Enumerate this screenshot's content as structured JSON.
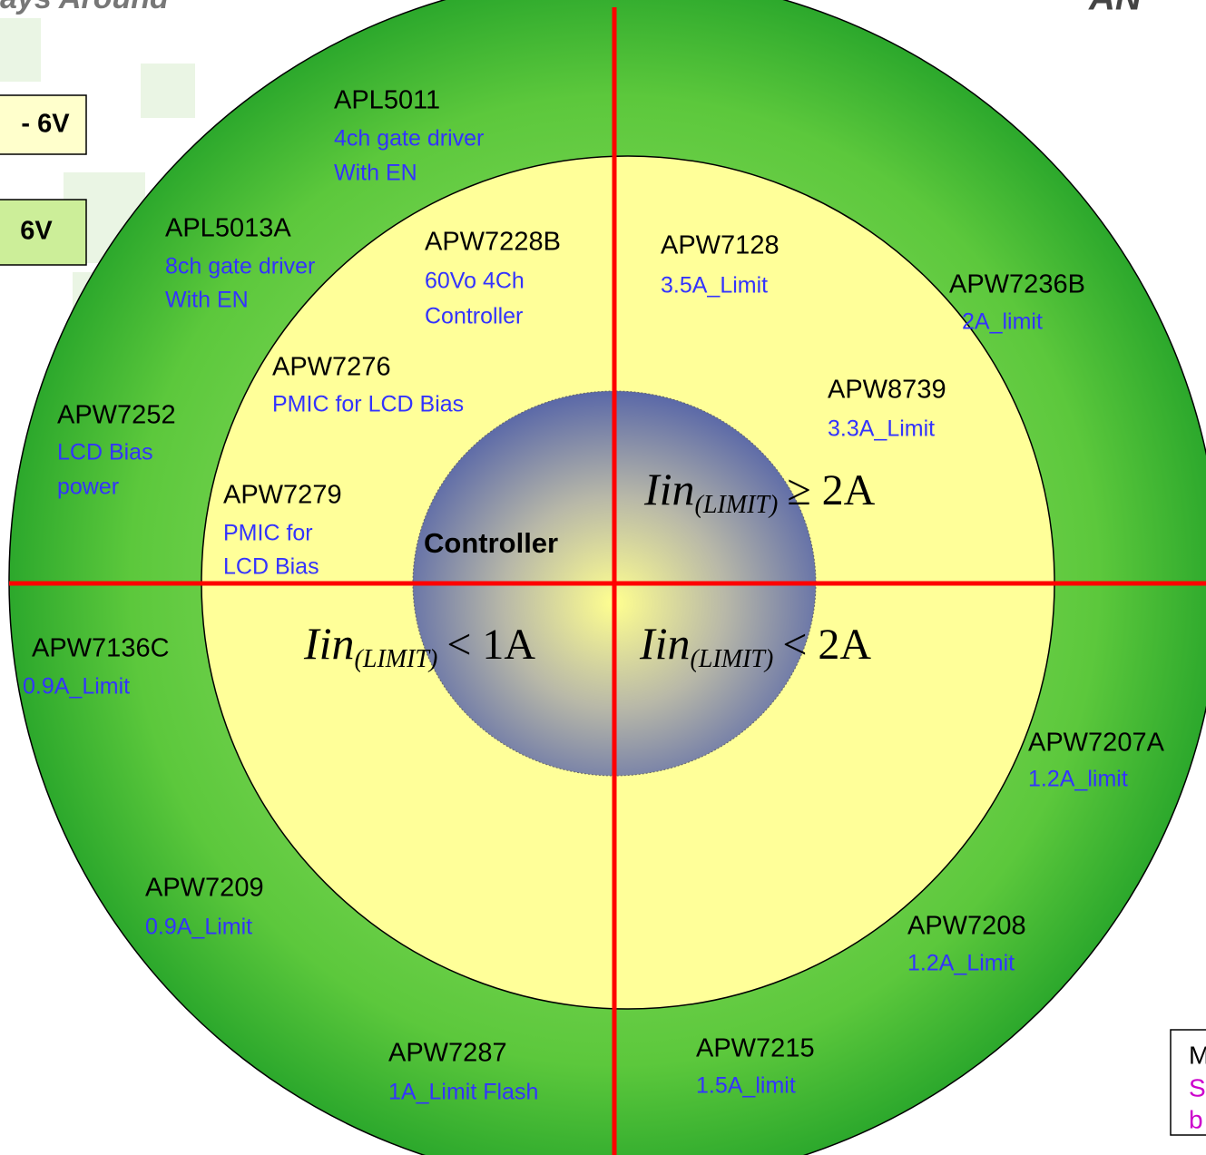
{
  "header": {
    "title_fragment": "ays Around",
    "logo_fragment": "AN"
  },
  "side_boxes": [
    "- 6V",
    "6V"
  ],
  "center": "Controller",
  "items": [
    {
      "name": "APL5011",
      "lines": [
        "4ch gate   driver",
        "With EN"
      ]
    },
    {
      "name": "APL5013A",
      "lines": [
        "8ch gate   driver",
        "With EN"
      ]
    },
    {
      "name": "APW7228B",
      "lines": [
        "60Vo 4Ch",
        "Controller"
      ]
    },
    {
      "name": "APW7128",
      "lines": [
        "3.5A_Limit"
      ]
    },
    {
      "name": "APW7236B",
      "lines": [
        "2A_limit"
      ]
    },
    {
      "name": "APW7276",
      "lines": [
        "PMIC for LCD Bias"
      ]
    },
    {
      "name": "APW8739",
      "name_color": "#cc00cc",
      "lines": [
        "3.3A_Limit"
      ]
    },
    {
      "name": "APW7252",
      "lines": [
        "LCD Bias",
        "power"
      ]
    },
    {
      "name": "APW7279",
      "lines": [
        "PMIC for",
        "LCD Bias"
      ]
    },
    {
      "name": "APW7136C",
      "lines": [
        "0.9A_Limit"
      ]
    },
    {
      "name": "APW7207A",
      "lines": [
        "1.2A_limit"
      ]
    },
    {
      "name": "APW7209",
      "lines": [
        "0.9A_Limit"
      ]
    },
    {
      "name": "APW7208",
      "lines": [
        "1.2A_Limit"
      ]
    },
    {
      "name": "APW7287",
      "name_color": "#cc00cc",
      "lines": [
        "1A_Limit Flash"
      ]
    },
    {
      "name": "APW7215",
      "lines": [
        "1.5A_limit"
      ]
    }
  ],
  "formulas": [
    {
      "main": "Iin",
      "sub": "(LIMIT)",
      "rel": "≥ 2A"
    },
    {
      "main": "Iin",
      "sub": "(LIMIT)",
      "rel": "< 1A"
    },
    {
      "main": "Iin",
      "sub": "(LIMIT)",
      "rel": "< 2A"
    }
  ],
  "note_box": [
    "M",
    "S",
    "b"
  ]
}
